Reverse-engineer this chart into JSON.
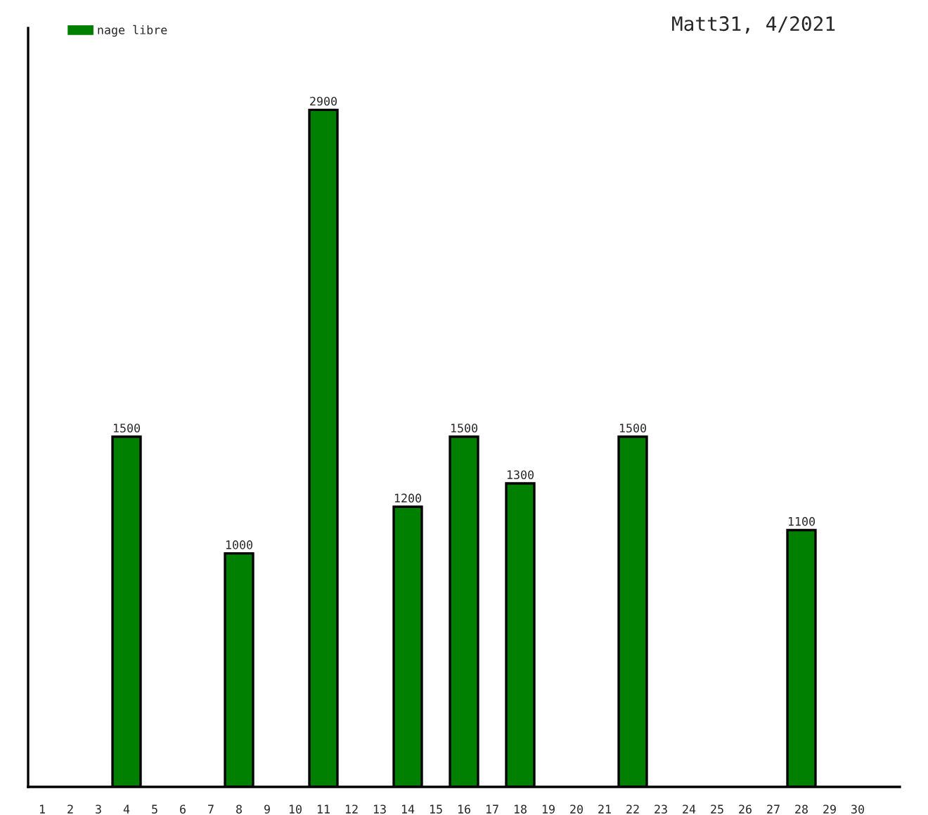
{
  "chart_data": {
    "type": "bar",
    "title": "Matt31, 4/2021",
    "categories": [
      "1",
      "2",
      "3",
      "4",
      "5",
      "6",
      "7",
      "8",
      "9",
      "10",
      "11",
      "12",
      "13",
      "14",
      "15",
      "16",
      "17",
      "18",
      "19",
      "20",
      "21",
      "22",
      "23",
      "24",
      "25",
      "26",
      "27",
      "28",
      "29",
      "30"
    ],
    "series": [
      {
        "name": "nage libre",
        "color": "#008000",
        "values": [
          null,
          null,
          null,
          1500,
          null,
          null,
          null,
          1000,
          null,
          null,
          2900,
          null,
          null,
          1200,
          null,
          1500,
          null,
          1300,
          null,
          null,
          null,
          1500,
          null,
          null,
          null,
          null,
          null,
          1100,
          null,
          null
        ]
      }
    ],
    "ylim": [
      0,
      3250
    ],
    "data_labels": true,
    "legend": "top left",
    "tick_labels": "x"
  }
}
